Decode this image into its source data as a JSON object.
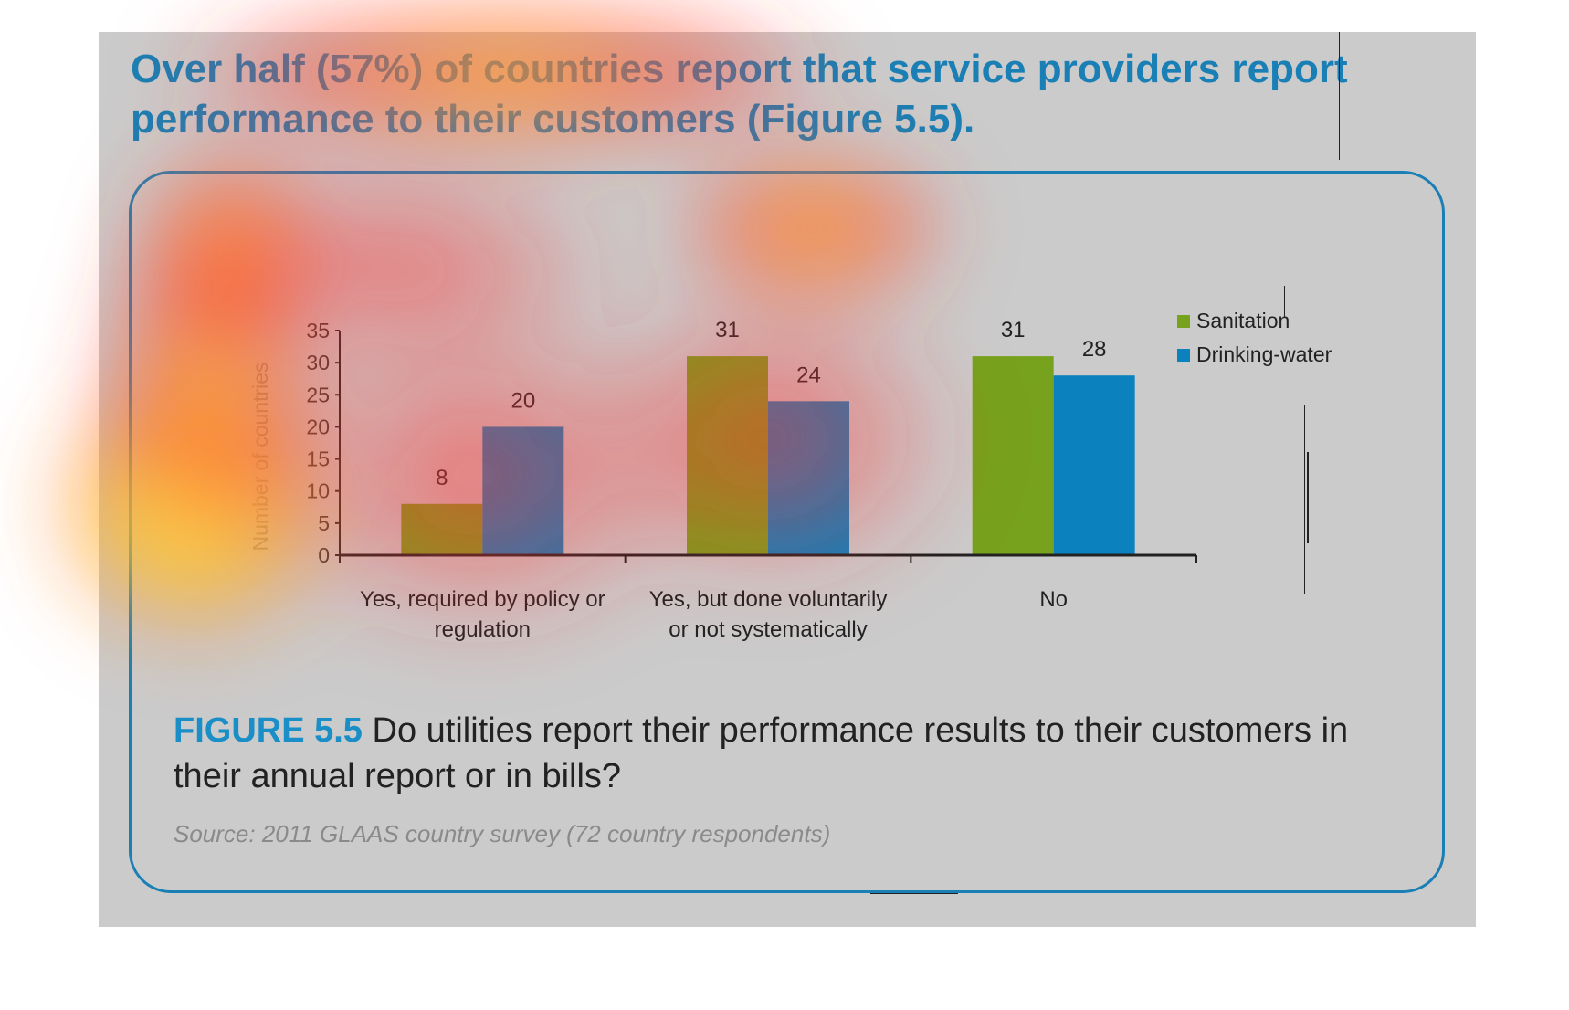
{
  "headline": "Over half (57%) of countries report that service providers report performance to their customers (Figure 5.5).",
  "caption": {
    "label": "FIGURE 5.5",
    "text": " Do utilities report their performance results to their customers in their annual report or in bills?"
  },
  "source": "Source: 2011 GLAAS country survey (72 country respondents)",
  "colors": {
    "sanitation": "#76a21d",
    "drinking_water": "#0b82bd",
    "border": "#1a7fb4",
    "figure_label": "#1a8ec6"
  },
  "chart_data": {
    "type": "bar",
    "categories": [
      "Yes, required by policy or regulation",
      "Yes, but done voluntarily or not systematically",
      "No"
    ],
    "category_lines": [
      [
        "Yes, required by policy or",
        "regulation"
      ],
      [
        "Yes, but done voluntarily",
        "or not systematically"
      ],
      [
        "No"
      ]
    ],
    "series": [
      {
        "name": "Sanitation",
        "values": [
          8,
          31,
          31
        ]
      },
      {
        "name": "Drinking-water",
        "values": [
          20,
          24,
          28
        ]
      }
    ],
    "ylabel": "Number of countries",
    "ylim": [
      0,
      35
    ],
    "yticks": [
      0,
      5,
      10,
      15,
      20,
      25,
      30,
      35
    ],
    "legend_position": "top-right",
    "grid": false
  },
  "overlay": {
    "type": "heatmap"
  }
}
